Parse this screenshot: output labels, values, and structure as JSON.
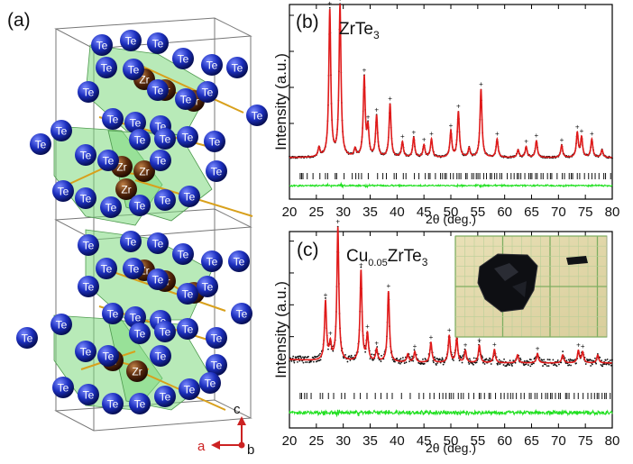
{
  "panel_a": {
    "label": "(a)",
    "atoms": {
      "te": "Te",
      "zr": "Zr"
    },
    "axes": {
      "a": "a",
      "b": "b",
      "c": "c"
    },
    "colors": {
      "te": "#1c2fbf",
      "zr": "#5a2a0c",
      "bond": "#d8a01c",
      "poly": "#7ed87e",
      "axis": "#cc2222"
    }
  },
  "panel_b": {
    "label": "(b)",
    "compound": {
      "prefix": "ZrTe",
      "sub": "3",
      "suffix": ""
    }
  },
  "panel_c": {
    "label": "(c)",
    "compound": {
      "prefix": "Cu",
      "sub": "0.05",
      "mid": "ZrTe",
      "sub2": "3"
    }
  },
  "chart_data": [
    {
      "type": "line",
      "panel": "b",
      "xlabel": "2θ (deg.)",
      "ylabel": "Intensity (a.u.)",
      "xlim": [
        20,
        80
      ],
      "x_ticks": [
        "20",
        "25",
        "30",
        "35",
        "40",
        "45",
        "50",
        "55",
        "60",
        "65",
        "70",
        "75",
        "80"
      ],
      "peaks": [
        {
          "x": 25.5,
          "h": 0.06
        },
        {
          "x": 27.5,
          "h": 0.97
        },
        {
          "x": 29.4,
          "h": 1.0
        },
        {
          "x": 32.2,
          "h": 0.05
        },
        {
          "x": 33.9,
          "h": 0.52
        },
        {
          "x": 34.6,
          "h": 0.18
        },
        {
          "x": 36.2,
          "h": 0.27
        },
        {
          "x": 38.7,
          "h": 0.35
        },
        {
          "x": 41.0,
          "h": 0.1
        },
        {
          "x": 43.1,
          "h": 0.13
        },
        {
          "x": 45.0,
          "h": 0.08
        },
        {
          "x": 46.4,
          "h": 0.12
        },
        {
          "x": 50.0,
          "h": 0.17
        },
        {
          "x": 51.4,
          "h": 0.3
        },
        {
          "x": 53.4,
          "h": 0.06
        },
        {
          "x": 55.6,
          "h": 0.45
        },
        {
          "x": 58.6,
          "h": 0.12
        },
        {
          "x": 62.5,
          "h": 0.05
        },
        {
          "x": 64.0,
          "h": 0.07
        },
        {
          "x": 65.9,
          "h": 0.11
        },
        {
          "x": 70.6,
          "h": 0.08
        },
        {
          "x": 73.5,
          "h": 0.16
        },
        {
          "x": 74.3,
          "h": 0.13
        },
        {
          "x": 76.2,
          "h": 0.12
        },
        {
          "x": 78.1,
          "h": 0.05
        }
      ],
      "colors": {
        "observed": "#111111",
        "calculated": "#e01a1a",
        "difference": "#22e022",
        "bragg": "#111111"
      }
    },
    {
      "type": "line",
      "panel": "c",
      "xlabel": "2θ (deg.)",
      "ylabel": "Intensity (a.u.)",
      "xlim": [
        20,
        80
      ],
      "x_ticks": [
        "20",
        "25",
        "30",
        "35",
        "40",
        "45",
        "50",
        "55",
        "60",
        "65",
        "70",
        "75",
        "80"
      ],
      "peaks": [
        {
          "x": 26.7,
          "h": 0.44
        },
        {
          "x": 27.6,
          "h": 0.12
        },
        {
          "x": 29.0,
          "h": 1.0
        },
        {
          "x": 33.3,
          "h": 0.68
        },
        {
          "x": 34.5,
          "h": 0.2
        },
        {
          "x": 36.2,
          "h": 0.09
        },
        {
          "x": 38.4,
          "h": 0.53
        },
        {
          "x": 42.0,
          "h": 0.06
        },
        {
          "x": 43.3,
          "h": 0.08
        },
        {
          "x": 46.3,
          "h": 0.15
        },
        {
          "x": 49.7,
          "h": 0.2
        },
        {
          "x": 51.1,
          "h": 0.18
        },
        {
          "x": 52.7,
          "h": 0.09
        },
        {
          "x": 55.3,
          "h": 0.13
        },
        {
          "x": 58.1,
          "h": 0.1
        },
        {
          "x": 62.4,
          "h": 0.06
        },
        {
          "x": 66.1,
          "h": 0.07
        },
        {
          "x": 70.8,
          "h": 0.06
        },
        {
          "x": 73.7,
          "h": 0.09
        },
        {
          "x": 74.5,
          "h": 0.08
        },
        {
          "x": 77.3,
          "h": 0.06
        }
      ],
      "colors": {
        "observed": "#111111",
        "calculated": "#e01a1a",
        "difference": "#22e022",
        "bragg": "#111111"
      }
    }
  ]
}
